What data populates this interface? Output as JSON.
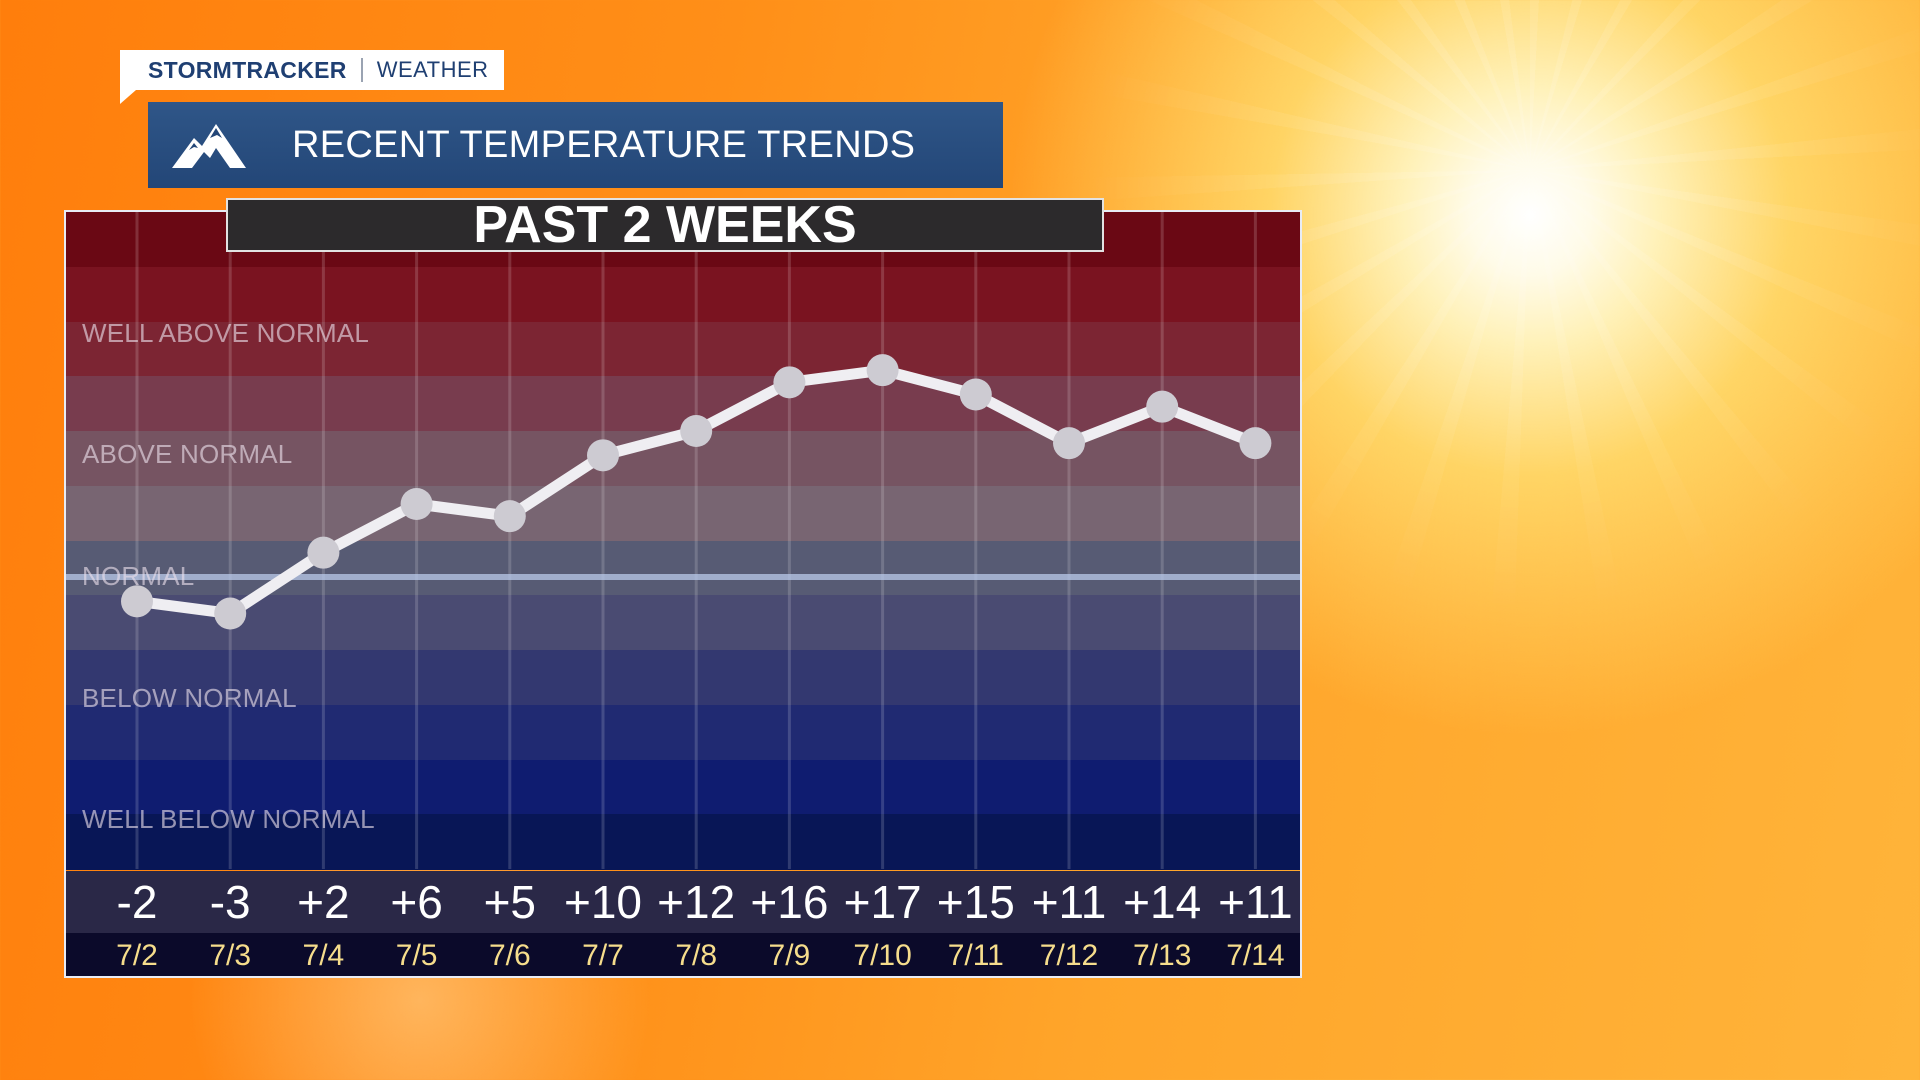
{
  "brand": {
    "name": "STORMTRACKER",
    "sub": "WEATHER"
  },
  "header": {
    "title": "RECENT TEMPERATURE TRENDS",
    "icon": "mountain-icon"
  },
  "subtitle": "PAST 2 WEEKS",
  "categories": [
    {
      "label": "WELL ABOVE NORMAL",
      "value": 20
    },
    {
      "label": "ABOVE NORMAL",
      "value": 10
    },
    {
      "label": "NORMAL",
      "value": 0
    },
    {
      "label": "BELOW NORMAL",
      "value": -10
    },
    {
      "label": "WELL BELOW NORMAL",
      "value": -20
    }
  ],
  "chart_data": {
    "type": "line",
    "title": "RECENT TEMPERATURE TRENDS",
    "subtitle": "PAST 2 WEEKS",
    "x": [
      "7/2",
      "7/3",
      "7/4",
      "7/5",
      "7/6",
      "7/7",
      "7/8",
      "7/9",
      "7/10",
      "7/11",
      "7/12",
      "7/13",
      "7/14"
    ],
    "values": [
      -2,
      -3,
      2,
      6,
      5,
      10,
      12,
      16,
      17,
      15,
      11,
      14,
      11
    ],
    "value_labels": [
      "-2",
      "-3",
      "+2",
      "+6",
      "+5",
      "+10",
      "+12",
      "+16",
      "+17",
      "+15",
      "+11",
      "+14",
      "+11"
    ],
    "ylim": [
      -24,
      30
    ],
    "reference_line": 0,
    "grid": true
  },
  "colors": {
    "line": "#efeef2",
    "point": "#cdcbd2",
    "normal_line": "#b9c9ea",
    "date_text": "#f6dd8c"
  }
}
